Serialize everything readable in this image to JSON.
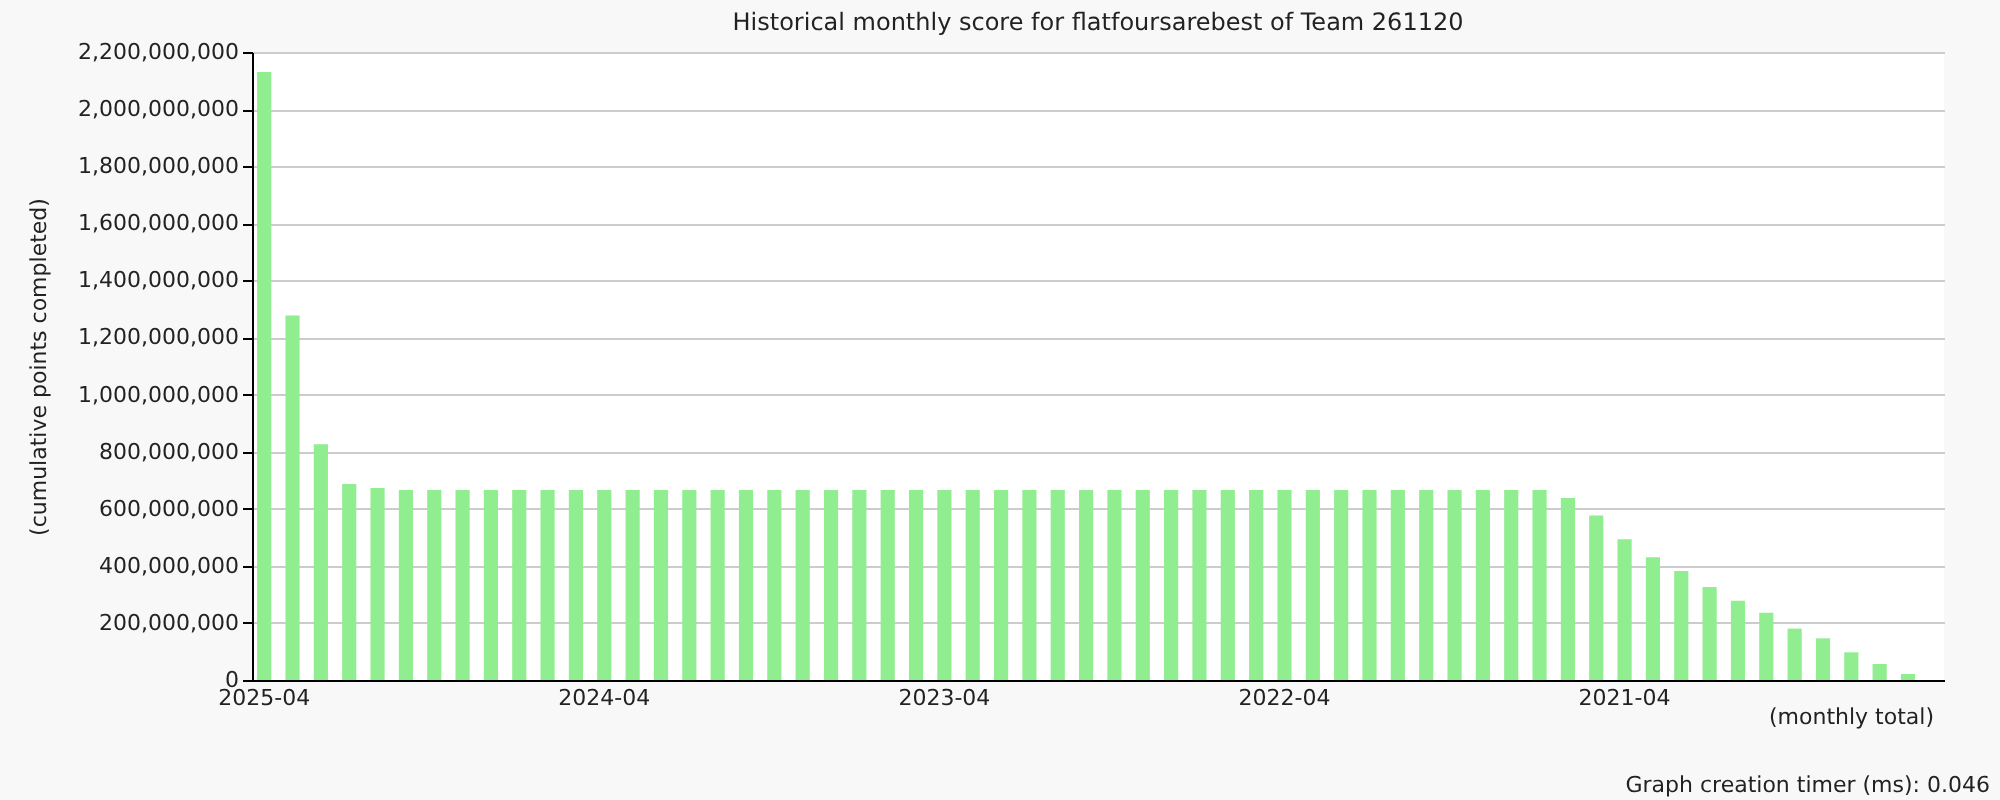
{
  "chart_data": {
    "type": "bar",
    "title": "Historical monthly score for flatfoursarebest of Team 261120",
    "ylabel": "(cumulative points completed)",
    "annotations": [
      "(monthly total)",
      "Graph creation timer (ms): 0.046"
    ],
    "categories": [
      "2025-04",
      null,
      null,
      null,
      null,
      null,
      null,
      null,
      null,
      null,
      null,
      null,
      "2024-04",
      null,
      null,
      null,
      null,
      null,
      null,
      null,
      null,
      null,
      null,
      null,
      "2023-04",
      null,
      null,
      null,
      null,
      null,
      null,
      null,
      null,
      null,
      null,
      null,
      "2022-04",
      null,
      null,
      null,
      null,
      null,
      null,
      null,
      null,
      null,
      null,
      null,
      "2021-04",
      null,
      null,
      null,
      null,
      null,
      null,
      null,
      null,
      null,
      null
    ],
    "values": [
      2130000000,
      1277000000,
      826000000,
      687000000,
      673000000,
      666000000,
      666000000,
      666000000,
      666000000,
      666000000,
      666000000,
      666000000,
      666000000,
      666000000,
      666000000,
      666000000,
      666000000,
      666000000,
      666000000,
      666000000,
      666000000,
      666000000,
      666000000,
      666000000,
      666000000,
      666000000,
      666000000,
      666000000,
      666000000,
      666000000,
      666000000,
      666000000,
      666000000,
      666000000,
      666000000,
      666000000,
      666000000,
      666000000,
      666000000,
      666000000,
      666000000,
      666000000,
      666000000,
      666000000,
      666000000,
      666000000,
      638000000,
      576000000,
      493000000,
      430000000,
      382000000,
      326000000,
      278000000,
      236000000,
      180000000,
      146000000,
      97000000,
      56000000,
      21000000
    ],
    "color": "#90ee90",
    "ylim": [
      0,
      2200000000
    ],
    "yticks": [
      0,
      {
        "value": 200000000,
        "label": "200,000,000"
      },
      {
        "value": 400000000,
        "label": "400,000,000"
      },
      {
        "value": 600000000,
        "label": "600,000,000"
      },
      {
        "value": 800000000,
        "label": "800,000,000"
      },
      {
        "value": 1000000000,
        "label": "1,000,000,000"
      },
      {
        "value": 1200000000,
        "label": "1,200,000,000"
      },
      {
        "value": 1400000000,
        "label": "1,400,000,000"
      },
      {
        "value": 1600000000,
        "label": "1,600,000,000"
      },
      {
        "value": 1800000000,
        "label": "1,800,000,000"
      },
      {
        "value": 2000000000,
        "label": "2,000,000,000"
      },
      {
        "value": 2200000000,
        "label": "2,200,000,000"
      }
    ],
    "grid": "y"
  }
}
